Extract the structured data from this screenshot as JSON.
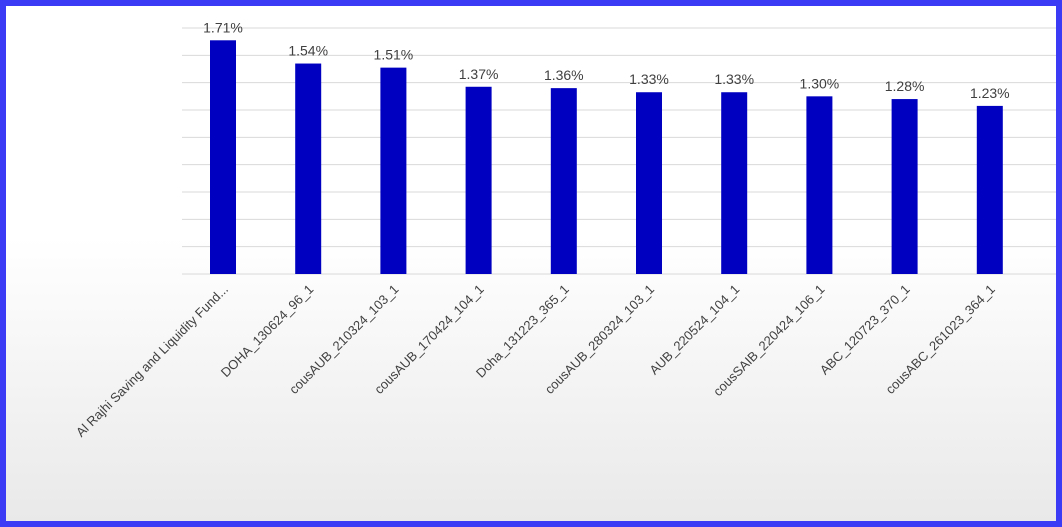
{
  "chart_data": {
    "type": "bar",
    "categories": [
      "Al Rajhi Saving and Liquidity Fund...",
      "DOHA_130624_96_1",
      "cousAUB_210324_103_1",
      "cousAUB_170424_104_1",
      "Doha_131223_365_1",
      "cousAUB_280324_103_1",
      "AUB_220524_104_1",
      "cousSAIB_220424_106_1",
      "ABC_120723_370_1",
      "cousABC_261023_364_1"
    ],
    "values": [
      1.71,
      1.54,
      1.51,
      1.37,
      1.36,
      1.33,
      1.33,
      1.3,
      1.28,
      1.23
    ],
    "data_labels": [
      "1.71%",
      "1.54%",
      "1.51%",
      "1.37%",
      "1.36%",
      "1.33%",
      "1.33%",
      "1.30%",
      "1.28%",
      "1.23%"
    ],
    "ylim": [
      0,
      1.8
    ],
    "grid": true,
    "legend": "none",
    "bar_color": "#0000c0",
    "border_color": "#3b3bf5"
  }
}
